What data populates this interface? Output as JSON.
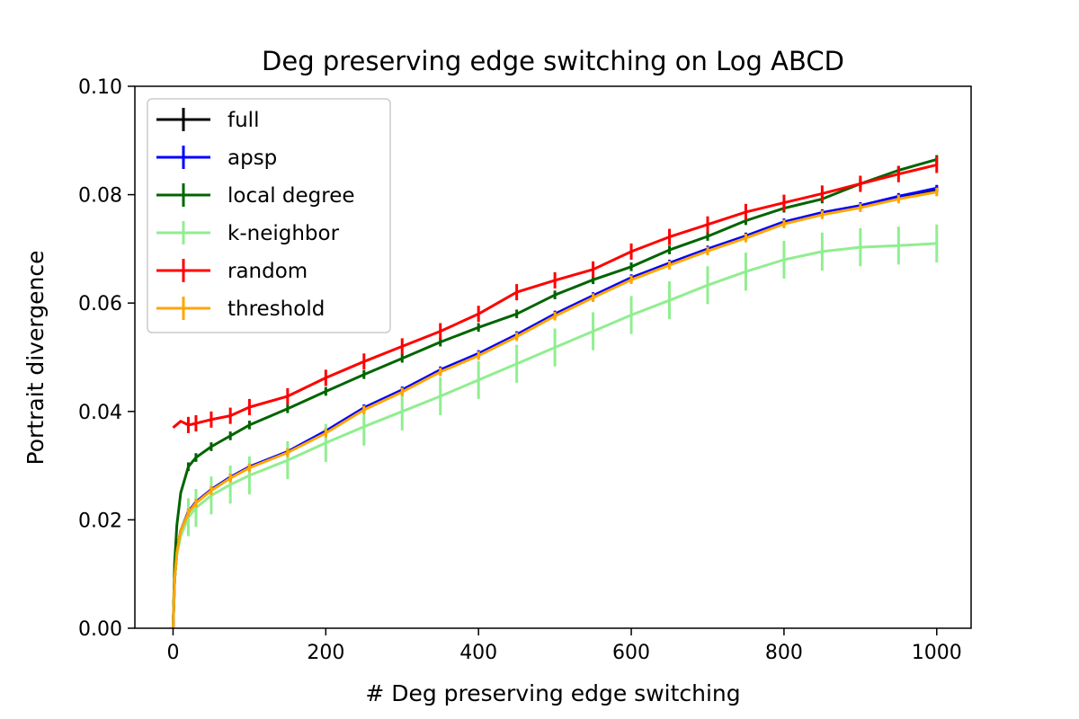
{
  "chart_data": {
    "type": "line",
    "title": "Deg preserving edge switching on Log ABCD",
    "xlabel": "# Deg preserving edge switching",
    "ylabel": "Portrait divergence",
    "xlim": [
      -50,
      1045
    ],
    "ylim": [
      0.0,
      0.1
    ],
    "x_ticks": [
      0,
      200,
      400,
      600,
      800,
      1000
    ],
    "y_ticks": [
      0.0,
      0.02,
      0.04,
      0.06,
      0.08,
      0.1
    ],
    "x_tick_labels": [
      "0",
      "200",
      "400",
      "600",
      "800",
      "1000"
    ],
    "y_tick_labels": [
      "0.00",
      "0.02",
      "0.04",
      "0.06",
      "0.08",
      "0.10"
    ],
    "grid": false,
    "legend_position": "upper-left",
    "error_bars": true,
    "series": [
      {
        "name": "full",
        "color": "#000000",
        "x": [
          0,
          2,
          5,
          10,
          20,
          30,
          50,
          75,
          100,
          150,
          200,
          250,
          300,
          350,
          400,
          450,
          500,
          550,
          600,
          650,
          700,
          750,
          800,
          850,
          900,
          950,
          1000
        ],
        "y": [
          0.0,
          0.009,
          0.014,
          0.018,
          0.0215,
          0.0232,
          0.0255,
          0.0278,
          0.0297,
          0.0325,
          0.0362,
          0.0405,
          0.0438,
          0.0475,
          0.0505,
          0.054,
          0.0578,
          0.0612,
          0.0645,
          0.0672,
          0.0698,
          0.0722,
          0.0748,
          0.0765,
          0.0778,
          0.0795,
          0.081
        ],
        "err": 0.0006
      },
      {
        "name": "apsp",
        "color": "#0000ff",
        "x": [
          0,
          2,
          5,
          10,
          20,
          30,
          50,
          75,
          100,
          150,
          200,
          250,
          300,
          350,
          400,
          450,
          500,
          550,
          600,
          650,
          700,
          750,
          800,
          850,
          900,
          950,
          1000
        ],
        "y": [
          0.0,
          0.009,
          0.014,
          0.018,
          0.0215,
          0.0233,
          0.0256,
          0.0279,
          0.0298,
          0.0326,
          0.0364,
          0.0407,
          0.044,
          0.0477,
          0.0507,
          0.0542,
          0.058,
          0.0614,
          0.0647,
          0.0674,
          0.07,
          0.0724,
          0.075,
          0.0767,
          0.078,
          0.0797,
          0.0812
        ],
        "err": 0.0006
      },
      {
        "name": "local degree",
        "color": "#006400",
        "x": [
          0,
          2,
          5,
          10,
          20,
          30,
          50,
          75,
          100,
          150,
          200,
          250,
          300,
          350,
          400,
          450,
          500,
          550,
          600,
          650,
          700,
          750,
          800,
          850,
          900,
          950,
          1000
        ],
        "y": [
          0.0,
          0.012,
          0.019,
          0.025,
          0.0298,
          0.0315,
          0.0335,
          0.0355,
          0.0375,
          0.0405,
          0.0437,
          0.0468,
          0.0498,
          0.0528,
          0.0555,
          0.058,
          0.0615,
          0.0643,
          0.0667,
          0.0698,
          0.0723,
          0.0752,
          0.0775,
          0.0792,
          0.082,
          0.0845,
          0.0865
        ],
        "err": 0.0008
      },
      {
        "name": "k-neighbor",
        "color": "#90ee90",
        "x": [
          0,
          2,
          5,
          10,
          20,
          30,
          50,
          75,
          100,
          150,
          200,
          250,
          300,
          350,
          400,
          450,
          500,
          550,
          600,
          650,
          700,
          750,
          800,
          850,
          900,
          950,
          1000
        ],
        "y": [
          0.0,
          0.009,
          0.0135,
          0.017,
          0.0205,
          0.0222,
          0.0245,
          0.0265,
          0.0282,
          0.031,
          0.0342,
          0.0372,
          0.04,
          0.0428,
          0.0458,
          0.0488,
          0.0518,
          0.0548,
          0.0578,
          0.0605,
          0.0633,
          0.0658,
          0.068,
          0.0695,
          0.0703,
          0.0706,
          0.071
        ],
        "err": 0.0035
      },
      {
        "name": "random",
        "color": "#ff0000",
        "x": [
          0,
          10,
          20,
          30,
          50,
          75,
          100,
          150,
          200,
          250,
          300,
          350,
          400,
          450,
          500,
          550,
          600,
          650,
          700,
          750,
          800,
          850,
          900,
          950,
          1000
        ],
        "y": [
          0.037,
          0.0382,
          0.0375,
          0.0378,
          0.0385,
          0.0392,
          0.0408,
          0.0428,
          0.0462,
          0.0492,
          0.052,
          0.0548,
          0.058,
          0.062,
          0.0642,
          0.0662,
          0.0695,
          0.0722,
          0.0745,
          0.0768,
          0.0785,
          0.0802,
          0.082,
          0.0838,
          0.0855
        ],
        "err": 0.0015
      },
      {
        "name": "threshold",
        "color": "#ffa500",
        "x": [
          0,
          2,
          5,
          10,
          20,
          30,
          50,
          75,
          100,
          150,
          200,
          250,
          300,
          350,
          400,
          450,
          500,
          550,
          600,
          650,
          700,
          750,
          800,
          850,
          900,
          950,
          1000
        ],
        "y": [
          0.0,
          0.009,
          0.014,
          0.018,
          0.0213,
          0.0231,
          0.0254,
          0.0277,
          0.0296,
          0.0324,
          0.036,
          0.0403,
          0.0436,
          0.0473,
          0.0503,
          0.0538,
          0.0576,
          0.061,
          0.0643,
          0.067,
          0.0696,
          0.072,
          0.0746,
          0.0763,
          0.0776,
          0.0792,
          0.0805
        ],
        "err": 0.0008
      }
    ]
  }
}
